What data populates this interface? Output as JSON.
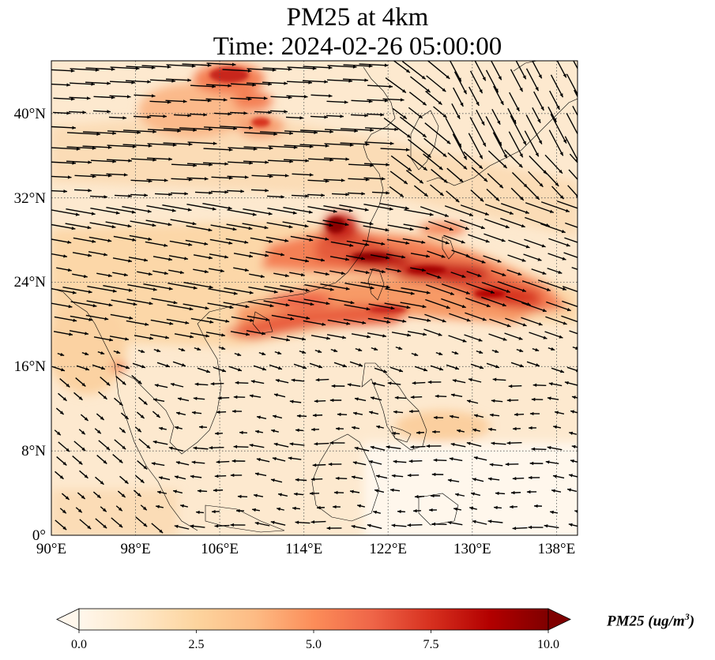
{
  "title": {
    "line1": "PM25 at 4km",
    "line2": "Time: 2024-02-26 05:00:00"
  },
  "map": {
    "lon_range": [
      90,
      140
    ],
    "lat_range": [
      0,
      45
    ],
    "lon_ticks": [
      "90°E",
      "98°E",
      "106°E",
      "114°E",
      "122°E",
      "130°E",
      "138°E"
    ],
    "lat_ticks": [
      "0°",
      "8°N",
      "16°N",
      "24°N",
      "32°N",
      "40°N"
    ],
    "gridlines": "dotted"
  },
  "colorbar": {
    "label_main": "PM25 (ug/m",
    "label_sup": "3",
    "label_end": ")",
    "ticks": [
      "0.0",
      "2.5",
      "5.0",
      "7.5",
      "10.0"
    ],
    "range": [
      0,
      10
    ],
    "extend": "both",
    "colormap": "OrRd",
    "colors": [
      "#fff7ec",
      "#fee8c8",
      "#fdd49e",
      "#fdbb84",
      "#fc8d59",
      "#ef6548",
      "#d7301f",
      "#b30000",
      "#7f0000"
    ]
  }
}
